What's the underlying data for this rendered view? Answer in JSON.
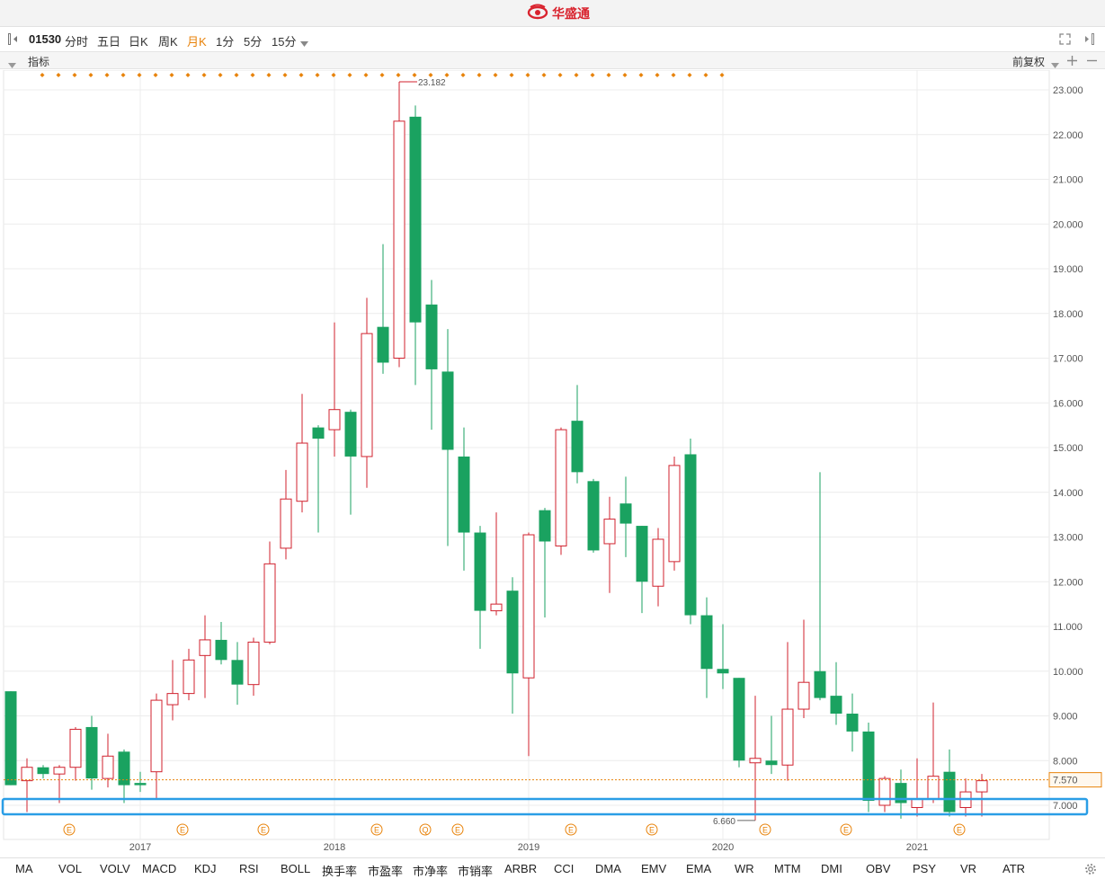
{
  "app": {
    "brand": "华盛通"
  },
  "toolbar": {
    "code": "01530",
    "periods": [
      "分时",
      "五日",
      "日K",
      "周K",
      "月K",
      "1分",
      "5分",
      "15分"
    ],
    "active_period": "月K"
  },
  "subbar": {
    "indicator_label": "指标",
    "adjust_label": "前复权"
  },
  "chart_data": {
    "type": "candlestick",
    "interval": "monthly",
    "ylim": [
      6.2,
      23.3
    ],
    "yticks": [
      "7.000",
      "8.000",
      "9.000",
      "10.000",
      "11.000",
      "12.000",
      "13.000",
      "14.000",
      "15.000",
      "16.000",
      "17.000",
      "18.000",
      "19.000",
      "20.000",
      "21.000",
      "22.000",
      "23.000"
    ],
    "years": [
      "2017",
      "2018",
      "2019",
      "2020",
      "2021"
    ],
    "current_price": "7.570",
    "high_label": "23.182",
    "low_label": "6.660",
    "event_markers": [
      "E",
      "E",
      "E",
      "E",
      "Q",
      "E",
      "E",
      "E",
      "E",
      "E",
      "E"
    ],
    "candles": [
      {
        "o": 9.55,
        "h": 9.55,
        "l": 7.45,
        "c": 7.45
      },
      {
        "o": 7.55,
        "h": 8.05,
        "l": 6.85,
        "c": 7.85
      },
      {
        "o": 7.85,
        "h": 7.9,
        "l": 7.6,
        "c": 7.7
      },
      {
        "o": 7.7,
        "h": 7.9,
        "l": 7.05,
        "c": 7.85
      },
      {
        "o": 7.85,
        "h": 8.75,
        "l": 7.55,
        "c": 8.7
      },
      {
        "o": 8.75,
        "h": 9.0,
        "l": 7.35,
        "c": 7.6
      },
      {
        "o": 7.6,
        "h": 8.6,
        "l": 7.4,
        "c": 8.1
      },
      {
        "o": 8.2,
        "h": 8.25,
        "l": 7.05,
        "c": 7.45
      },
      {
        "o": 7.5,
        "h": 7.75,
        "l": 7.3,
        "c": 7.45
      },
      {
        "o": 7.75,
        "h": 9.5,
        "l": 7.15,
        "c": 9.35
      },
      {
        "o": 9.25,
        "h": 10.25,
        "l": 8.9,
        "c": 9.5
      },
      {
        "o": 9.5,
        "h": 10.5,
        "l": 9.35,
        "c": 10.25
      },
      {
        "o": 10.35,
        "h": 11.25,
        "l": 9.4,
        "c": 10.7
      },
      {
        "o": 10.7,
        "h": 11.1,
        "l": 10.15,
        "c": 10.25
      },
      {
        "o": 10.25,
        "h": 10.65,
        "l": 9.25,
        "c": 9.7
      },
      {
        "o": 9.7,
        "h": 10.75,
        "l": 9.45,
        "c": 10.65
      },
      {
        "o": 10.65,
        "h": 12.9,
        "l": 10.6,
        "c": 12.4
      },
      {
        "o": 12.75,
        "h": 14.5,
        "l": 12.5,
        "c": 13.85
      },
      {
        "o": 13.8,
        "h": 16.2,
        "l": 13.55,
        "c": 15.1
      },
      {
        "o": 15.45,
        "h": 15.5,
        "l": 13.1,
        "c": 15.2
      },
      {
        "o": 15.4,
        "h": 17.8,
        "l": 14.8,
        "c": 15.85
      },
      {
        "o": 15.8,
        "h": 15.85,
        "l": 13.5,
        "c": 14.8
      },
      {
        "o": 14.8,
        "h": 18.35,
        "l": 14.1,
        "c": 17.55
      },
      {
        "o": 17.7,
        "h": 19.55,
        "l": 16.65,
        "c": 16.9
      },
      {
        "o": 17.0,
        "h": 23.18,
        "l": 16.8,
        "c": 22.3
      },
      {
        "o": 22.4,
        "h": 22.65,
        "l": 16.4,
        "c": 17.8
      },
      {
        "o": 18.2,
        "h": 18.75,
        "l": 15.4,
        "c": 16.75
      },
      {
        "o": 16.7,
        "h": 17.65,
        "l": 12.8,
        "c": 14.95
      },
      {
        "o": 14.8,
        "h": 15.45,
        "l": 12.25,
        "c": 13.1
      },
      {
        "o": 13.1,
        "h": 13.25,
        "l": 10.5,
        "c": 11.35
      },
      {
        "o": 11.35,
        "h": 13.55,
        "l": 11.25,
        "c": 11.5
      },
      {
        "o": 11.8,
        "h": 12.1,
        "l": 9.05,
        "c": 9.95
      },
      {
        "o": 9.85,
        "h": 13.1,
        "l": 8.1,
        "c": 13.05
      },
      {
        "o": 13.6,
        "h": 13.65,
        "l": 11.2,
        "c": 12.9
      },
      {
        "o": 12.8,
        "h": 15.45,
        "l": 12.6,
        "c": 15.4
      },
      {
        "o": 15.6,
        "h": 16.4,
        "l": 14.2,
        "c": 14.45
      },
      {
        "o": 14.25,
        "h": 14.3,
        "l": 12.65,
        "c": 12.7
      },
      {
        "o": 12.85,
        "h": 13.9,
        "l": 11.75,
        "c": 13.4
      },
      {
        "o": 13.75,
        "h": 14.35,
        "l": 12.55,
        "c": 13.3
      },
      {
        "o": 13.25,
        "h": 13.25,
        "l": 11.3,
        "c": 12.0
      },
      {
        "o": 11.9,
        "h": 13.2,
        "l": 11.45,
        "c": 12.95
      },
      {
        "o": 12.45,
        "h": 14.8,
        "l": 12.25,
        "c": 14.6
      },
      {
        "o": 14.85,
        "h": 15.2,
        "l": 11.05,
        "c": 11.25
      },
      {
        "o": 11.25,
        "h": 11.65,
        "l": 9.4,
        "c": 10.05
      },
      {
        "o": 10.05,
        "h": 11.05,
        "l": 9.6,
        "c": 9.95
      },
      {
        "o": 9.85,
        "h": 9.85,
        "l": 7.85,
        "c": 8.0
      },
      {
        "o": 7.95,
        "h": 9.45,
        "l": 6.66,
        "c": 8.05
      },
      {
        "o": 8.0,
        "h": 9.0,
        "l": 7.7,
        "c": 7.9
      },
      {
        "o": 7.9,
        "h": 10.65,
        "l": 7.55,
        "c": 9.15
      },
      {
        "o": 9.15,
        "h": 11.15,
        "l": 8.95,
        "c": 9.75
      },
      {
        "o": 10.0,
        "h": 14.45,
        "l": 9.35,
        "c": 9.4
      },
      {
        "o": 9.45,
        "h": 10.2,
        "l": 8.8,
        "c": 9.05
      },
      {
        "o": 9.05,
        "h": 9.5,
        "l": 8.2,
        "c": 8.65
      },
      {
        "o": 8.65,
        "h": 8.85,
        "l": 6.85,
        "c": 7.1
      },
      {
        "o": 7.0,
        "h": 7.65,
        "l": 6.85,
        "c": 7.6
      },
      {
        "o": 7.5,
        "h": 7.8,
        "l": 6.7,
        "c": 7.05
      },
      {
        "o": 6.95,
        "h": 8.05,
        "l": 6.75,
        "c": 7.15
      },
      {
        "o": 7.15,
        "h": 9.3,
        "l": 7.05,
        "c": 7.65
      },
      {
        "o": 7.75,
        "h": 8.25,
        "l": 6.75,
        "c": 6.85
      },
      {
        "o": 6.95,
        "h": 7.6,
        "l": 6.75,
        "c": 7.3
      },
      {
        "o": 7.3,
        "h": 7.7,
        "l": 6.75,
        "c": 7.55
      }
    ]
  },
  "bottom": {
    "indicators": [
      "MA",
      "VOL",
      "VOLV",
      "MACD",
      "KDJ",
      "RSI",
      "BOLL",
      "换手率",
      "市盈率",
      "市净率",
      "市销率",
      "ARBR",
      "CCI",
      "DMA",
      "EMV",
      "EMA",
      "WR",
      "MTM",
      "DMI",
      "OBV",
      "PSY",
      "VR",
      "ATR"
    ]
  },
  "colors": {
    "up": "#d0222e",
    "down": "#1aa260",
    "accent": "#e8830b",
    "highlight": "#2a9ee6"
  }
}
